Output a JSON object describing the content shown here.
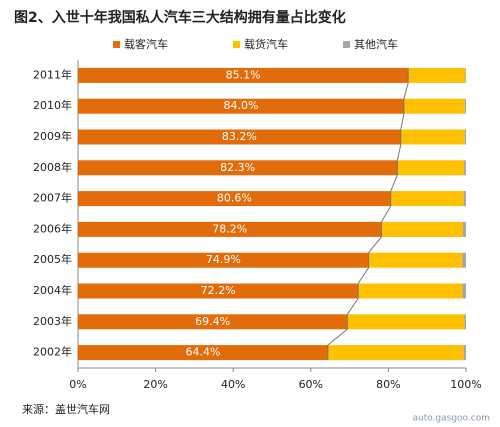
{
  "chart_data": {
    "type": "bar",
    "orientation": "horizontal",
    "stacked": true,
    "title": "图2、入世十年我国私人汽车三大结构拥有量占比变化",
    "categories": [
      "2011年",
      "2010年",
      "2009年",
      "2008年",
      "2007年",
      "2006年",
      "2005年",
      "2004年",
      "2003年",
      "2002年"
    ],
    "series": [
      {
        "name": "载客汽车",
        "color": "#e36c0a",
        "values": [
          85.1,
          84.0,
          83.2,
          82.3,
          80.6,
          78.2,
          74.9,
          72.2,
          69.4,
          64.4
        ],
        "value_labels": [
          "85.1%",
          "84.0%",
          "83.2%",
          "82.3%",
          "80.6%",
          "78.2%",
          "74.9%",
          "72.2%",
          "69.4%",
          "64.4%"
        ]
      },
      {
        "name": "载货汽车",
        "color": "#ffc000",
        "values": [
          14.7,
          15.7,
          16.5,
          17.2,
          18.8,
          21.0,
          24.2,
          26.9,
          30.2,
          35.0
        ]
      },
      {
        "name": "其他汽车",
        "color": "#a6a6a6",
        "values": [
          0.2,
          0.3,
          0.3,
          0.5,
          0.6,
          0.8,
          0.9,
          0.9,
          0.4,
          0.6
        ]
      }
    ],
    "xlim": [
      0,
      100
    ],
    "xticks": [
      {
        "value": 0,
        "label": "0%"
      },
      {
        "value": 20,
        "label": "20%"
      },
      {
        "value": 40,
        "label": "40%"
      },
      {
        "value": 60,
        "label": "60%"
      },
      {
        "value": 80,
        "label": "80%"
      },
      {
        "value": 100,
        "label": "100%"
      }
    ],
    "grid": false,
    "legend": "top",
    "source": "来源：盖世汽车网",
    "watermark": "auto.gasgoo.com"
  }
}
